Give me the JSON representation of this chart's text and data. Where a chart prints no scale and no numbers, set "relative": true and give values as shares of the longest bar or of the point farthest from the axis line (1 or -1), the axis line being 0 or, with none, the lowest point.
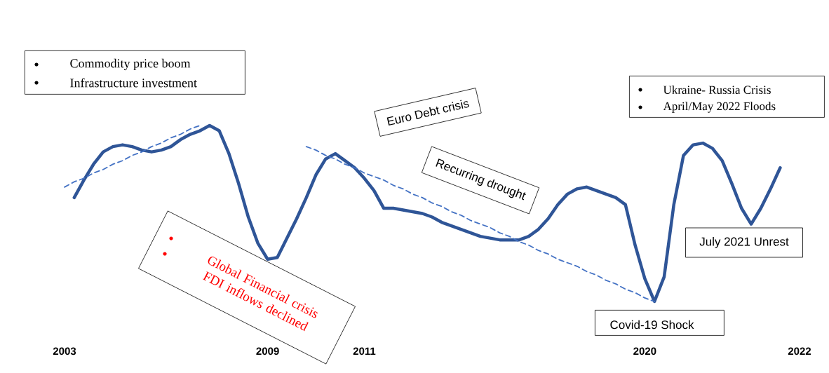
{
  "chart_data": {
    "type": "line",
    "relative": true,
    "categories": [
      "2003",
      null,
      null,
      null,
      null,
      null,
      null,
      null,
      null,
      null,
      null,
      null,
      null,
      null,
      null,
      null,
      null,
      null,
      null,
      null,
      null,
      "2009",
      null,
      null,
      null,
      null,
      null,
      null,
      null,
      null,
      null,
      "2011",
      null,
      null,
      null,
      null,
      null,
      null,
      null,
      null,
      null,
      null,
      null,
      null,
      null,
      null,
      null,
      null,
      null,
      null,
      null,
      null,
      null,
      null,
      null,
      null,
      null,
      null,
      null,
      null,
      "2020",
      null,
      null,
      null,
      null,
      null,
      null,
      null,
      null,
      null,
      null,
      null,
      null,
      null,
      null,
      null,
      "2022"
    ],
    "series": [
      {
        "color": "#2f5597",
        "line_style": "solid",
        "values": [
          null,
          0.59,
          0.69,
          0.78,
          0.85,
          0.88,
          0.89,
          0.88,
          0.86,
          0.85,
          0.86,
          0.88,
          0.92,
          0.95,
          0.97,
          1,
          0.97,
          0.84,
          0.67,
          0.48,
          0.33,
          0.24,
          0.25,
          0.36,
          0.47,
          0.59,
          0.72,
          0.81,
          0.84,
          0.8,
          0.76,
          0.7,
          0.63,
          0.53,
          0.53,
          0.52,
          0.51,
          0.5,
          0.48,
          0.45,
          0.43,
          0.41,
          0.39,
          0.37,
          0.36,
          0.35,
          0.35,
          0.35,
          0.37,
          0.41,
          0.47,
          0.55,
          0.61,
          0.64,
          0.65,
          0.63,
          0.61,
          0.59,
          0.55,
          0.32,
          0.13,
          0,
          0.14,
          0.55,
          0.83,
          0.89,
          0.9,
          0.87,
          0.8,
          0.67,
          0.53,
          0.44,
          0.53,
          0.64,
          0.76,
          null,
          null
        ]
      },
      {
        "type": "line",
        "color": "#4472c4",
        "line_style": "dashed",
        "values": [
          0.65,
          0.68,
          0.7,
          0.73,
          0.75,
          0.78,
          0.8,
          0.83,
          0.85,
          0.88,
          0.9,
          0.93,
          0.95,
          0.98,
          1,
          null,
          null,
          null,
          null,
          null,
          null,
          null,
          null,
          null,
          null,
          null,
          null,
          null,
          null,
          null,
          null,
          null,
          null,
          null,
          null,
          null,
          null,
          null,
          null,
          null,
          null,
          null,
          null,
          null,
          null,
          null,
          null,
          null,
          null,
          null,
          null,
          null,
          null,
          null,
          null,
          null,
          null,
          null,
          null,
          null,
          null,
          null,
          null,
          null,
          null,
          null,
          null,
          null,
          null,
          null,
          null,
          null,
          null,
          null,
          null,
          null,
          null
        ]
      },
      {
        "type": "line",
        "color": "#4472c4",
        "line_style": "dashed",
        "values": [
          null,
          null,
          null,
          null,
          null,
          null,
          null,
          null,
          null,
          null,
          null,
          null,
          null,
          null,
          null,
          null,
          null,
          null,
          null,
          null,
          null,
          null,
          null,
          null,
          null,
          0.88,
          0.86,
          0.83,
          0.81,
          0.78,
          0.76,
          0.73,
          0.71,
          0.69,
          0.66,
          0.64,
          0.61,
          0.59,
          0.56,
          0.54,
          0.51,
          0.49,
          0.46,
          0.44,
          0.42,
          0.39,
          0.37,
          0.34,
          0.32,
          0.29,
          0.27,
          0.24,
          0.22,
          0.2,
          0.17,
          0.15,
          0.12,
          0.1,
          0.07,
          0.05,
          0.02,
          0,
          null,
          null,
          null,
          null,
          null,
          null,
          null,
          null,
          null,
          null,
          null,
          null,
          null,
          null,
          null
        ]
      }
    ],
    "annotations": [
      "Commodity price boom",
      "Infrastructure investment",
      "Euro Debt crisis",
      "Recurring drought",
      "Global Financial crisis",
      "FDI inflows declined",
      "Ukraine- Russia Crisis",
      "April/May  2022 Floods",
      "July 2021 Unrest",
      "Covid-19 Shock"
    ]
  }
}
